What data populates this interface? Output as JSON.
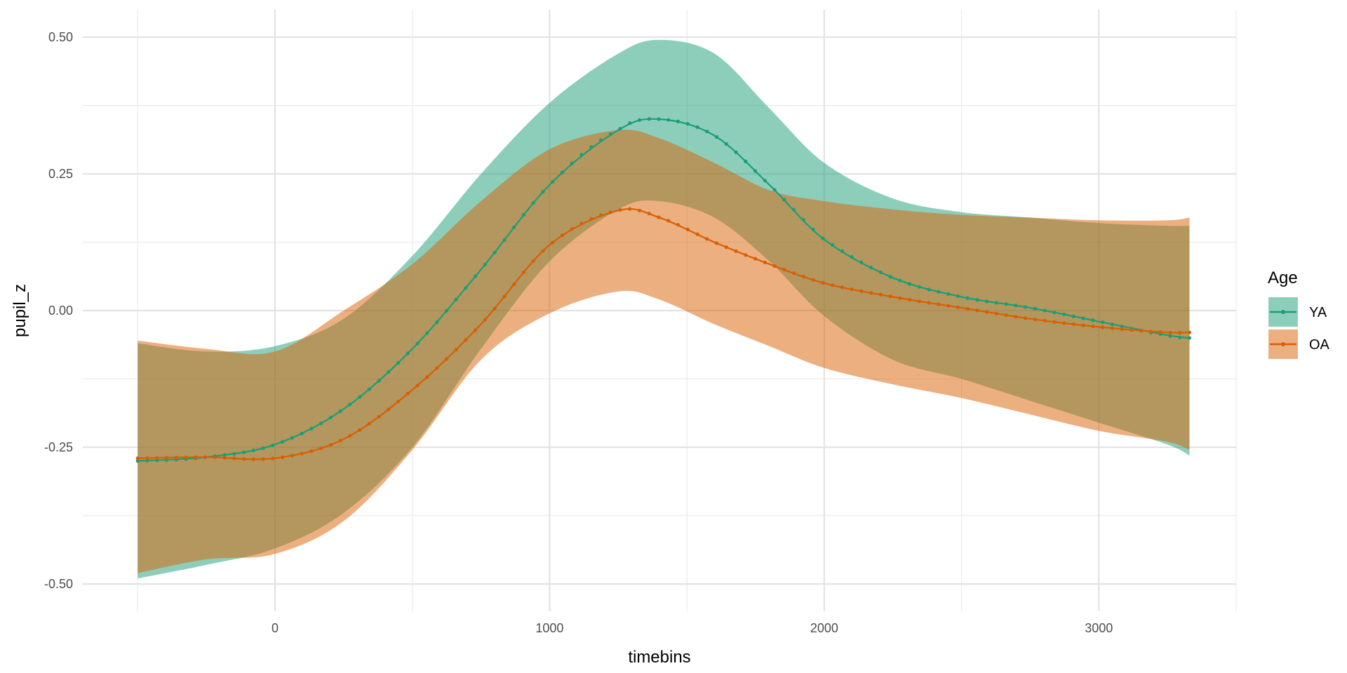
{
  "chart_data": {
    "type": "line",
    "title": "",
    "xlabel": "timebins",
    "ylabel": "pupil_z",
    "xlim": [
      -700,
      3500
    ],
    "ylim": [
      -0.55,
      0.55
    ],
    "x_ticks": [
      0,
      1000,
      2000,
      3000
    ],
    "x_tick_labels": [
      "0",
      "1000",
      "2000",
      "3000"
    ],
    "y_ticks": [
      -0.5,
      -0.25,
      0,
      0.25,
      0.5
    ],
    "y_tick_labels": [
      "-0.50",
      "-0.25",
      "0.00",
      "0.25",
      "0.50"
    ],
    "grid": true,
    "legend": {
      "title": "Age",
      "position": "right"
    },
    "series": [
      {
        "name": "YA",
        "color": "#1b9e77",
        "fill": "#1b9e77",
        "x": [
          -500,
          -250,
          0,
          250,
          500,
          750,
          1000,
          1250,
          1400,
          1600,
          1800,
          2000,
          2250,
          2500,
          2750,
          3000,
          3250,
          3330
        ],
        "y": [
          -0.275,
          -0.268,
          -0.245,
          -0.18,
          -0.07,
          0.075,
          0.23,
          0.33,
          0.35,
          0.32,
          0.23,
          0.13,
          0.06,
          0.025,
          0.005,
          -0.02,
          -0.045,
          -0.05
        ],
        "lower": [
          -0.49,
          -0.465,
          -0.435,
          -0.37,
          -0.25,
          -0.07,
          0.09,
          0.185,
          0.2,
          0.17,
          0.09,
          -0.01,
          -0.09,
          -0.125,
          -0.165,
          -0.205,
          -0.245,
          -0.265
        ],
        "upper": [
          -0.06,
          -0.075,
          -0.065,
          -0.015,
          0.1,
          0.25,
          0.38,
          0.47,
          0.495,
          0.47,
          0.37,
          0.27,
          0.205,
          0.18,
          0.17,
          0.16,
          0.155,
          0.155
        ]
      },
      {
        "name": "OA",
        "color": "#d95f02",
        "fill": "#d95f02",
        "x": [
          -500,
          -250,
          0,
          250,
          500,
          750,
          1000,
          1250,
          1400,
          1600,
          1800,
          2000,
          2250,
          2500,
          2750,
          3000,
          3250,
          3330
        ],
        "y": [
          -0.27,
          -0.268,
          -0.27,
          -0.235,
          -0.145,
          -0.025,
          0.12,
          0.183,
          0.17,
          0.125,
          0.085,
          0.05,
          0.025,
          0.005,
          -0.015,
          -0.03,
          -0.04,
          -0.04
        ],
        "lower": [
          -0.48,
          -0.455,
          -0.445,
          -0.385,
          -0.255,
          -0.09,
          -0.005,
          0.035,
          0.02,
          -0.025,
          -0.065,
          -0.105,
          -0.135,
          -0.16,
          -0.19,
          -0.22,
          -0.24,
          -0.255
        ],
        "upper": [
          -0.055,
          -0.07,
          -0.075,
          0.0,
          0.085,
          0.2,
          0.295,
          0.33,
          0.315,
          0.27,
          0.22,
          0.2,
          0.185,
          0.175,
          0.17,
          0.165,
          0.165,
          0.17
        ]
      }
    ]
  }
}
